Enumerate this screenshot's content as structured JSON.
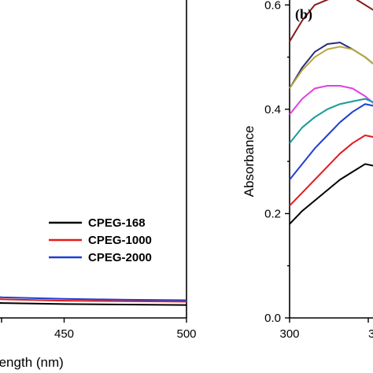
{
  "chart_data": [
    {
      "type": "line",
      "panel": "a",
      "xlabel": "Wavelength (nm)",
      "xlim": [
        400,
        500
      ],
      "xticks": [
        450,
        500
      ],
      "legend": {
        "position": "center-right"
      },
      "series": [
        {
          "name": "CPEG-168",
          "color": "#000000",
          "x": [
            400,
            410,
            425,
            450,
            475,
            500
          ],
          "y": [
            0.012,
            0.01,
            0.008,
            0.006,
            0.005,
            0.004
          ]
        },
        {
          "name": "CPEG-1000",
          "color": "#e41a1c",
          "x": [
            400,
            410,
            425,
            450,
            475,
            500
          ],
          "y": [
            0.022,
            0.019,
            0.016,
            0.013,
            0.012,
            0.011
          ]
        },
        {
          "name": "CPEG-2000",
          "color": "#1f3fd1",
          "x": [
            400,
            410,
            425,
            450,
            475,
            500
          ],
          "y": [
            0.03,
            0.026,
            0.02,
            0.017,
            0.015,
            0.014
          ]
        }
      ]
    },
    {
      "type": "line",
      "panel": "b",
      "panel_label": "(b)",
      "ylabel": "Absorbance",
      "xlim": [
        300,
        360
      ],
      "ylim": [
        0.0,
        0.7
      ],
      "xticks": [
        300,
        "3"
      ],
      "yticks": [
        "0.0",
        "0.2",
        "0.4",
        "0.6"
      ],
      "series": [
        {
          "color": "#8b1a1a",
          "x": [
            300,
            305,
            310,
            315,
            320,
            325,
            330,
            335,
            340,
            345,
            350,
            355,
            360
          ],
          "y": [
            0.53,
            0.57,
            0.6,
            0.61,
            0.62,
            0.615,
            0.6,
            0.585,
            0.57,
            0.555,
            0.545,
            0.52,
            0.495
          ]
        },
        {
          "color": "#2a2a80",
          "x": [
            300,
            305,
            310,
            315,
            320,
            325,
            330,
            335,
            340,
            345,
            350,
            355,
            360
          ],
          "y": [
            0.44,
            0.48,
            0.51,
            0.525,
            0.528,
            0.515,
            0.5,
            0.48,
            0.465,
            0.45,
            0.43,
            0.405,
            0.38
          ]
        },
        {
          "color": "#b8a640",
          "x": [
            300,
            305,
            310,
            315,
            320,
            325,
            330,
            335,
            340,
            345,
            350,
            355,
            360
          ],
          "y": [
            0.44,
            0.475,
            0.5,
            0.515,
            0.52,
            0.515,
            0.5,
            0.48,
            0.465,
            0.45,
            0.43,
            0.405,
            0.38
          ]
        },
        {
          "color": "#e040e0",
          "x": [
            300,
            305,
            310,
            315,
            320,
            325,
            330,
            335,
            340,
            345,
            350,
            355,
            360
          ],
          "y": [
            0.39,
            0.42,
            0.44,
            0.445,
            0.445,
            0.44,
            0.425,
            0.405,
            0.385,
            0.36,
            0.34,
            0.315,
            0.29
          ]
        },
        {
          "color": "#1a9a9a",
          "x": [
            300,
            305,
            310,
            315,
            320,
            325,
            330,
            335,
            340,
            345,
            350,
            355,
            360
          ],
          "y": [
            0.335,
            0.365,
            0.385,
            0.4,
            0.41,
            0.415,
            0.42,
            0.41,
            0.395,
            0.37,
            0.345,
            0.315,
            0.29
          ]
        },
        {
          "color": "#1f3fd1",
          "x": [
            300,
            305,
            310,
            315,
            320,
            325,
            330,
            335,
            340,
            345,
            350,
            355,
            360
          ],
          "y": [
            0.265,
            0.295,
            0.325,
            0.35,
            0.375,
            0.395,
            0.41,
            0.405,
            0.385,
            0.355,
            0.325,
            0.295,
            0.27
          ]
        },
        {
          "color": "#e41a1c",
          "x": [
            300,
            305,
            310,
            315,
            320,
            325,
            330,
            335,
            340,
            345,
            350,
            355,
            360
          ],
          "y": [
            0.215,
            0.24,
            0.265,
            0.29,
            0.315,
            0.335,
            0.35,
            0.345,
            0.325,
            0.3,
            0.275,
            0.25,
            0.23
          ]
        },
        {
          "color": "#000000",
          "x": [
            300,
            305,
            310,
            315,
            320,
            325,
            330,
            335,
            340,
            345,
            350,
            355,
            360
          ],
          "y": [
            0.18,
            0.205,
            0.225,
            0.245,
            0.265,
            0.28,
            0.295,
            0.29,
            0.275,
            0.255,
            0.235,
            0.215,
            0.2
          ]
        }
      ]
    }
  ]
}
